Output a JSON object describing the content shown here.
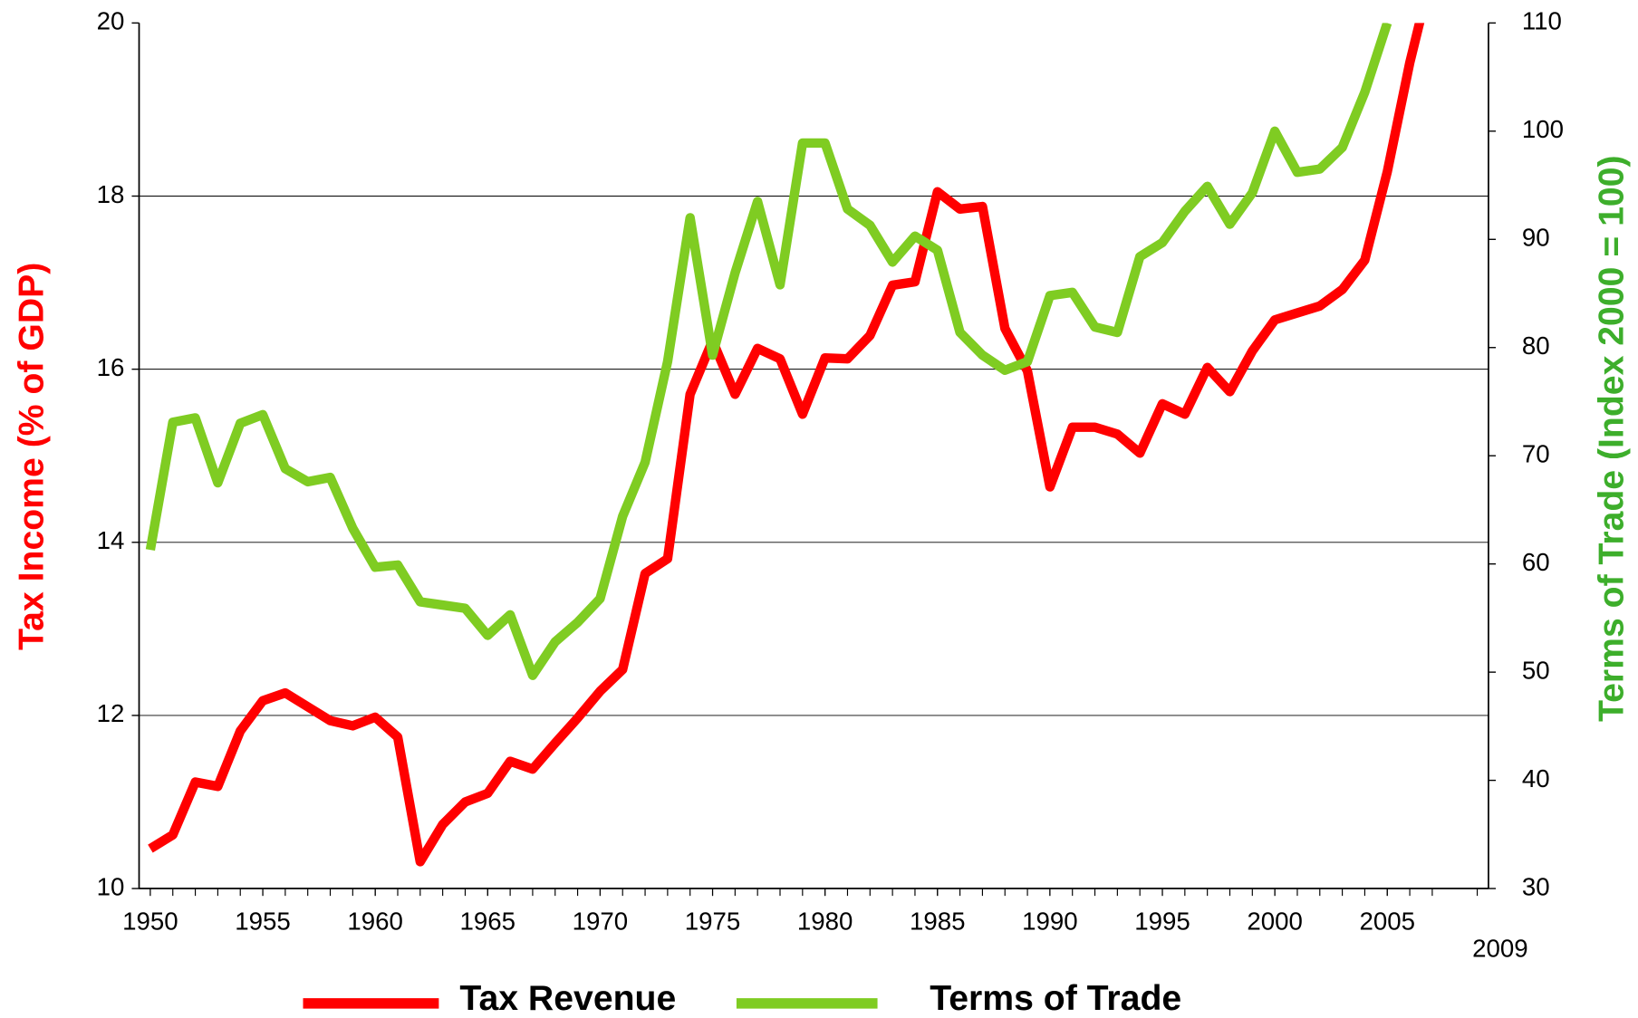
{
  "chart_data": {
    "type": "line",
    "y_label": "Tax Income (% of GDP)",
    "y2_label": "Terms of Trade (Index 2000 = 100)",
    "x": [
      1950,
      1951,
      1952,
      1953,
      1954,
      1955,
      1956,
      1957,
      1958,
      1959,
      1960,
      1961,
      1962,
      1963,
      1964,
      1965,
      1966,
      1967,
      1968,
      1969,
      1970,
      1971,
      1972,
      1973,
      1974,
      1975,
      1976,
      1977,
      1978,
      1979,
      1980,
      1981,
      1982,
      1983,
      1984,
      1985,
      1986,
      1987,
      1988,
      1989,
      1990,
      1991,
      1992,
      1993,
      1994,
      1995,
      1996,
      1997,
      1998,
      1999,
      2000,
      2001,
      2002,
      2003,
      2004,
      2005,
      2006,
      2007
    ],
    "series": [
      {
        "name": "Tax Revenue",
        "color": "#ff0000",
        "values": [
          10.46,
          10.62,
          11.23,
          11.18,
          11.82,
          12.17,
          12.26,
          12.1,
          11.94,
          11.88,
          11.98,
          11.75,
          10.31,
          10.74,
          11.0,
          11.1,
          11.47,
          11.38,
          11.68,
          11.97,
          12.28,
          12.53,
          13.64,
          13.81,
          15.71,
          16.33,
          15.71,
          16.24,
          16.12,
          15.48,
          16.13,
          16.12,
          16.39,
          16.97,
          17.01,
          18.05,
          17.85,
          17.88,
          16.47,
          15.98,
          14.64,
          15.33,
          15.33,
          15.25,
          15.03,
          15.6,
          15.48,
          16.02,
          15.74,
          16.21,
          16.57,
          16.65,
          16.73,
          16.92,
          17.26,
          18.28,
          19.54,
          20.6
        ]
      },
      {
        "name": "Terms of Trade",
        "color": "#7fcc22",
        "axis": "y2",
        "values": [
          61.3,
          73.1,
          73.5,
          67.5,
          73.0,
          73.8,
          68.8,
          67.6,
          68.0,
          63.3,
          59.7,
          59.9,
          56.5,
          56.2,
          55.9,
          53.4,
          55.3,
          49.7,
          52.8,
          54.6,
          56.8,
          64.4,
          69.4,
          78.7,
          92.0,
          79.3,
          86.9,
          93.5,
          85.8,
          98.9,
          98.9,
          92.8,
          91.3,
          87.9,
          90.3,
          89.0,
          81.4,
          79.3,
          77.9,
          78.7,
          84.8,
          85.1,
          81.9,
          81.4,
          88.4,
          89.7,
          92.6,
          94.9,
          91.4,
          94.3,
          100.0,
          96.2,
          96.5,
          98.5,
          103.6,
          110.0,
          null,
          null
        ]
      }
    ],
    "xlim": [
      1949.5,
      2009.5
    ],
    "xticks": [
      1950,
      1955,
      1960,
      1965,
      1970,
      1975,
      1980,
      1985,
      1990,
      1995,
      2000,
      2005,
      2009
    ],
    "ylim": [
      10,
      20
    ],
    "yticks": [
      10,
      12,
      14,
      16,
      18,
      20
    ],
    "y2lim": [
      30,
      110
    ],
    "y2ticks": [
      30,
      40,
      50,
      60,
      70,
      80,
      90,
      100,
      110
    ],
    "grid": true,
    "legend": "bottom"
  }
}
